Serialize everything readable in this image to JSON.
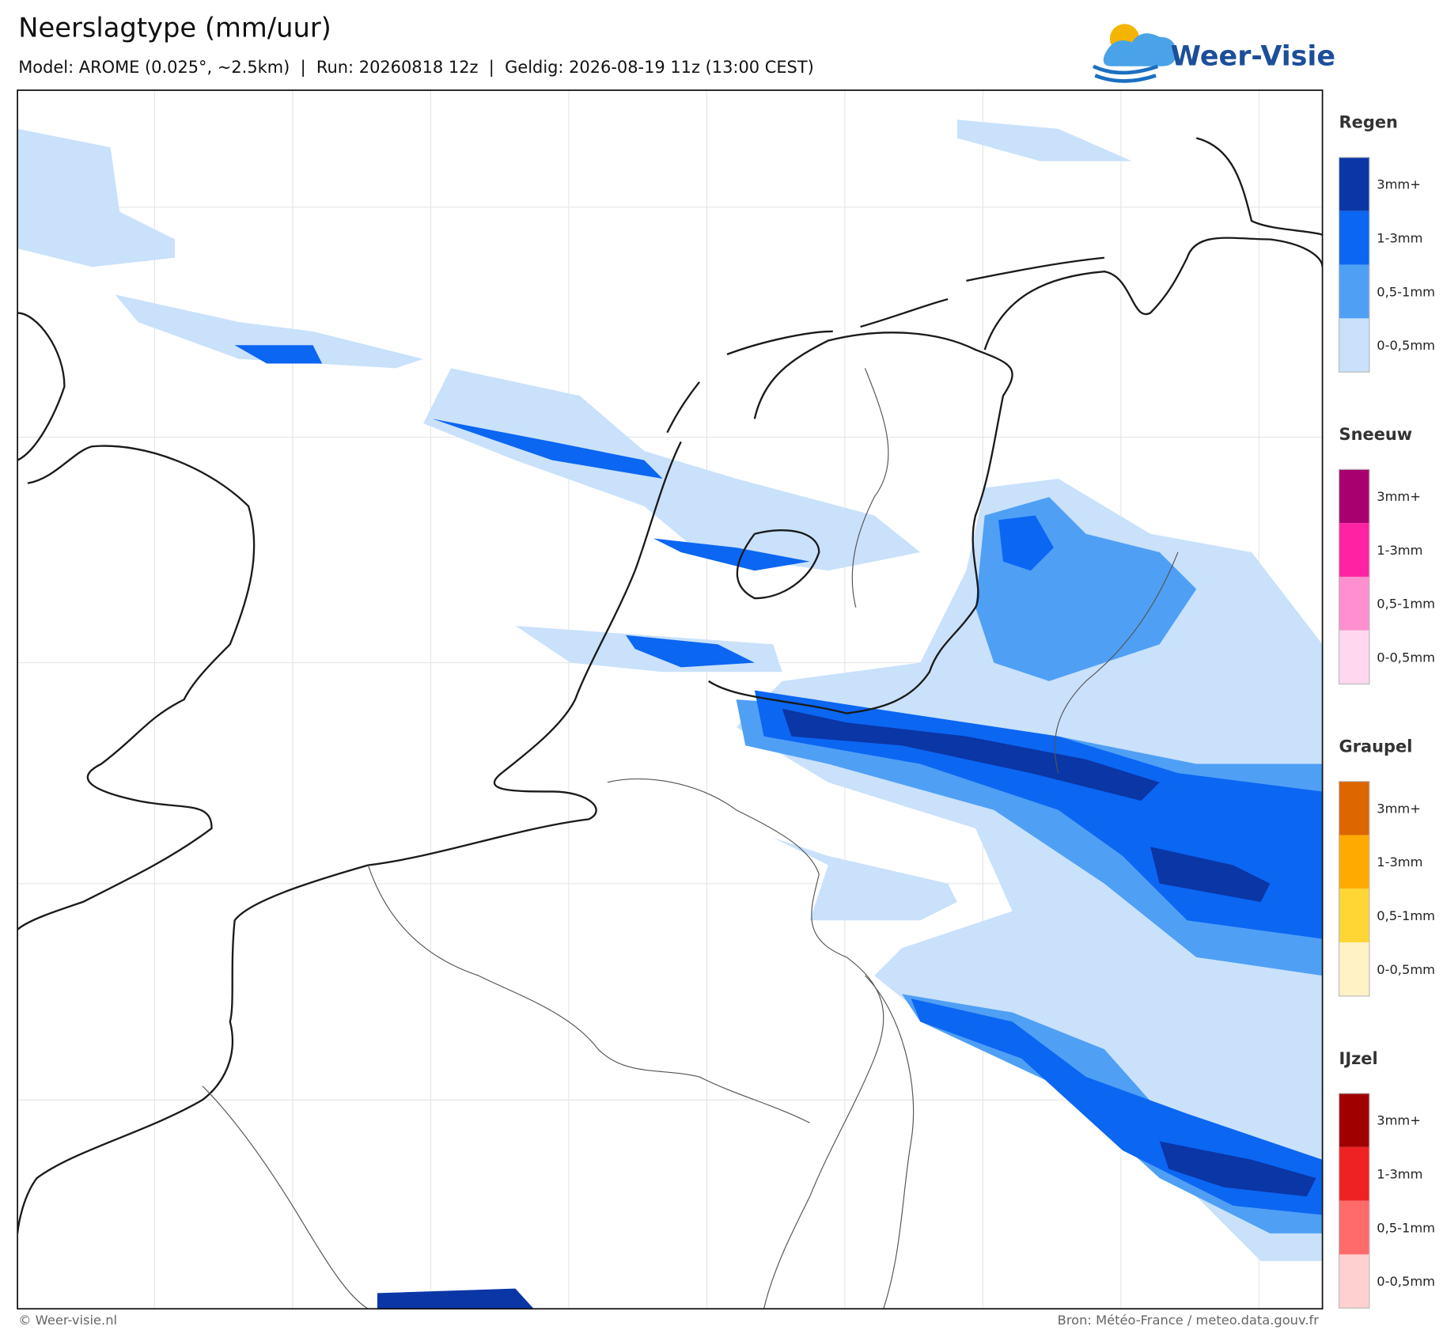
{
  "header": {
    "title": "Neerslagtype (mm/uur)",
    "subtitle": "Model: AROME (0.025°, ~2.5km)  |  Run: 20260818 12z  |  Geldig: 2026-08-19 11z (13:00 CEST)",
    "logo": "Weer-Visie"
  },
  "legend": [
    {
      "title": "Regen",
      "items": [
        {
          "label": "3mm+",
          "color": "#0a36a6"
        },
        {
          "label": "1-3mm",
          "color": "#0b66f2"
        },
        {
          "label": "0,5-1mm",
          "color": "#4f9ff5"
        },
        {
          "label": "0-0,5mm",
          "color": "#c9e1fb"
        }
      ]
    },
    {
      "title": "Sneeuw",
      "items": [
        {
          "label": "3mm+",
          "color": "#a8006e"
        },
        {
          "label": "1-3mm",
          "color": "#ff22a2"
        },
        {
          "label": "0,5-1mm",
          "color": "#ff8fcf"
        },
        {
          "label": "0-0,5mm",
          "color": "#ffd8ef"
        }
      ]
    },
    {
      "title": "Graupel",
      "items": [
        {
          "label": "3mm+",
          "color": "#dd6600"
        },
        {
          "label": "1-3mm",
          "color": "#ffaa00"
        },
        {
          "label": "0,5-1mm",
          "color": "#ffd633"
        },
        {
          "label": "0-0,5mm",
          "color": "#fff2c4"
        }
      ]
    },
    {
      "title": "IJzel",
      "items": [
        {
          "label": "3mm+",
          "color": "#a00000"
        },
        {
          "label": "1-3mm",
          "color": "#ee2222"
        },
        {
          "label": "0,5-1mm",
          "color": "#ff6a6a"
        },
        {
          "label": "0-0,5mm",
          "color": "#ffd0d0"
        }
      ]
    }
  ],
  "footer": {
    "credit": "© Weer-visie.nl",
    "source": "Bron: Météo-France / meteo.data.gouv.fr"
  }
}
